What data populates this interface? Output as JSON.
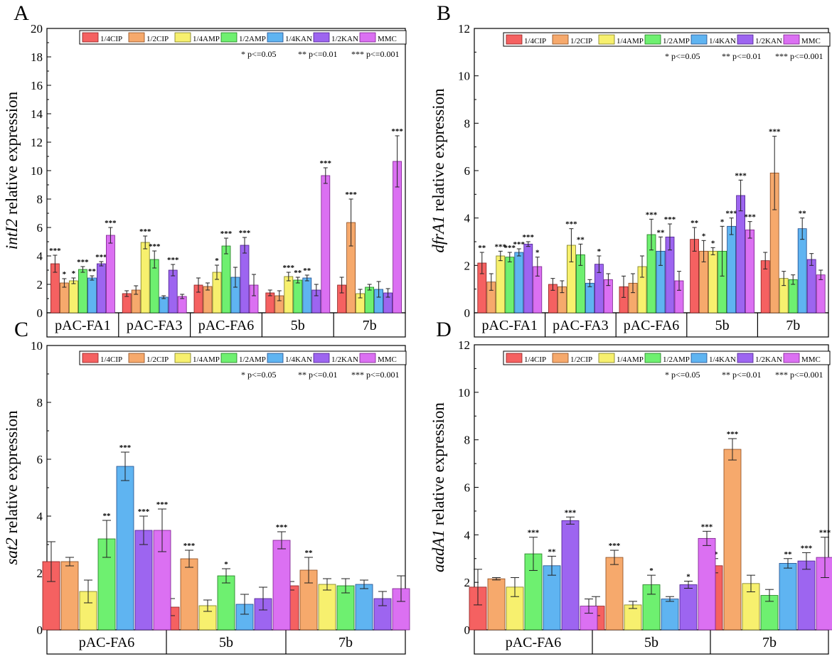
{
  "colors": {
    "fills": [
      "#f56161",
      "#f6a96c",
      "#f7f06e",
      "#6ef070",
      "#5fb4f1",
      "#9d65f0",
      "#db70f2"
    ],
    "strokes": [
      "#8b1e1e",
      "#8b4a1e",
      "#7a7a1e",
      "#1e7a1e",
      "#1e4a8b",
      "#4a1e8b",
      "#7a1e8b"
    ],
    "axis": "#000000"
  },
  "legend_labels": [
    "1/4CIP",
    "1/2CIP",
    "1/4AMP",
    "1/2AMP",
    "1/4KAN",
    "1/2KAN",
    "MMC"
  ],
  "significance_note": {
    "p05": "* p<=0.05",
    "p01": "** p<=0.01",
    "p001": "*** p<=0.001"
  },
  "chart_data": [
    {
      "panel": "A",
      "type": "bar",
      "ylabel_gene": "intI2",
      "ylabel_rest": " relative expression",
      "ylim": [
        0,
        20
      ],
      "yticks": [
        0,
        2,
        4,
        6,
        8,
        10,
        12,
        14,
        16,
        18,
        20
      ],
      "categories": [
        "pAC-FA1",
        "pAC-FA3",
        "pAC-FA6",
        "5b",
        "7b"
      ],
      "series": [
        {
          "name": "1/4CIP",
          "values": [
            3.45,
            1.35,
            1.95,
            1.4,
            1.95
          ],
          "errors": [
            0.6,
            0.2,
            0.5,
            0.2,
            0.55
          ],
          "sig": [
            "***",
            "",
            "",
            "",
            ""
          ]
        },
        {
          "name": "1/2CIP",
          "values": [
            2.1,
            1.6,
            1.85,
            1.2,
            6.35
          ],
          "errors": [
            0.3,
            0.3,
            0.25,
            0.35,
            1.65
          ],
          "sig": [
            "*",
            "",
            "",
            "",
            "***"
          ]
        },
        {
          "name": "1/4AMP",
          "values": [
            2.25,
            4.95,
            2.85,
            2.55,
            1.35
          ],
          "errors": [
            0.2,
            0.45,
            0.5,
            0.3,
            0.3
          ],
          "sig": [
            "*",
            "***",
            "*",
            "***",
            ""
          ]
        },
        {
          "name": "1/2AMP",
          "values": [
            3.05,
            3.75,
            4.7,
            2.3,
            1.8
          ],
          "errors": [
            0.2,
            0.6,
            0.55,
            0.2,
            0.2
          ],
          "sig": [
            "***",
            "***",
            "***",
            "**",
            ""
          ]
        },
        {
          "name": "1/4KAN",
          "values": [
            2.45,
            1.1,
            2.5,
            2.45,
            1.65
          ],
          "errors": [
            0.15,
            0.1,
            0.7,
            0.2,
            0.55
          ],
          "sig": [
            "**",
            "",
            "",
            "**",
            ""
          ]
        },
        {
          "name": "1/2KAN",
          "values": [
            3.45,
            3.0,
            4.75,
            1.6,
            1.4
          ],
          "errors": [
            0.15,
            0.4,
            0.55,
            0.4,
            0.3
          ],
          "sig": [
            "***",
            "***",
            "***",
            "",
            ""
          ]
        },
        {
          "name": "MMC",
          "values": [
            5.45,
            1.15,
            1.95,
            9.65,
            10.65
          ],
          "errors": [
            0.55,
            0.15,
            0.75,
            0.55,
            1.8
          ],
          "sig": [
            "***",
            "",
            "",
            "***",
            "***"
          ]
        }
      ]
    },
    {
      "panel": "B",
      "type": "bar",
      "ylabel_gene": "dfrA1",
      "ylabel_rest": " relative expression",
      "ylim": [
        0,
        12
      ],
      "yticks": [
        0,
        2,
        4,
        6,
        8,
        10,
        12
      ],
      "categories": [
        "pAC-FA1",
        "pAC-FA3",
        "pAC-FA6",
        "5b",
        "7b"
      ],
      "series": [
        {
          "name": "1/4CIP",
          "values": [
            2.1,
            1.2,
            1.1,
            3.1,
            2.2
          ],
          "errors": [
            0.45,
            0.25,
            0.45,
            0.5,
            0.35
          ],
          "sig": [
            "**",
            "",
            "",
            "**",
            ""
          ]
        },
        {
          "name": "1/2CIP",
          "values": [
            1.3,
            1.1,
            1.25,
            2.6,
            5.9
          ],
          "errors": [
            0.35,
            0.25,
            0.4,
            0.45,
            1.55
          ],
          "sig": [
            "",
            "",
            "",
            "*",
            "***"
          ]
        },
        {
          "name": "1/4AMP",
          "values": [
            2.4,
            2.85,
            1.95,
            2.6,
            1.45
          ],
          "errors": [
            0.2,
            0.7,
            0.45,
            0.15,
            0.3
          ],
          "sig": [
            "***",
            "***",
            "",
            "*",
            ""
          ]
        },
        {
          "name": "1/2AMP",
          "values": [
            2.35,
            2.45,
            3.3,
            2.6,
            1.4
          ],
          "errors": [
            0.2,
            0.45,
            0.65,
            1.05,
            0.2
          ],
          "sig": [
            "***",
            "**",
            "***",
            "*",
            ""
          ]
        },
        {
          "name": "1/4KAN",
          "values": [
            2.55,
            1.25,
            2.6,
            3.65,
            3.55
          ],
          "errors": [
            0.15,
            0.15,
            0.6,
            0.35,
            0.45
          ],
          "sig": [
            "***",
            "",
            "**",
            "***",
            "**"
          ]
        },
        {
          "name": "1/2KAN",
          "values": [
            2.9,
            2.05,
            3.2,
            4.95,
            2.25
          ],
          "errors": [
            0.1,
            0.35,
            0.55,
            0.65,
            0.25
          ],
          "sig": [
            "***",
            "*",
            "***",
            "***",
            ""
          ]
        },
        {
          "name": "MMC",
          "values": [
            1.95,
            1.4,
            1.35,
            3.5,
            1.6
          ],
          "errors": [
            0.4,
            0.25,
            0.4,
            0.35,
            0.2
          ],
          "sig": [
            "*",
            "",
            "",
            "***",
            ""
          ]
        }
      ]
    },
    {
      "panel": "C",
      "type": "bar",
      "ylabel_gene": "sat2",
      "ylabel_rest": " relative expression",
      "ylim": [
        0,
        10
      ],
      "yticks": [
        0,
        2,
        4,
        6,
        8,
        10
      ],
      "categories": [
        "pAC-FA6",
        "5b",
        "7b"
      ],
      "series": [
        {
          "name": "1/4CIP",
          "values": [
            2.4,
            0.8,
            1.55
          ],
          "errors": [
            0.7,
            0.3,
            0.15
          ],
          "sig": [
            "",
            "",
            ""
          ]
        },
        {
          "name": "1/2CIP",
          "values": [
            2.4,
            2.5,
            2.1
          ],
          "errors": [
            0.15,
            0.3,
            0.45
          ],
          "sig": [
            "",
            "***",
            "**"
          ]
        },
        {
          "name": "1/4AMP",
          "values": [
            1.35,
            0.85,
            1.6
          ],
          "errors": [
            0.4,
            0.2,
            0.2
          ],
          "sig": [
            "",
            "",
            ""
          ]
        },
        {
          "name": "1/2AMP",
          "values": [
            3.2,
            1.9,
            1.55
          ],
          "errors": [
            0.65,
            0.25,
            0.25
          ],
          "sig": [
            "**",
            "*",
            ""
          ]
        },
        {
          "name": "1/4KAN",
          "values": [
            5.75,
            0.9,
            1.6
          ],
          "errors": [
            0.5,
            0.35,
            0.15
          ],
          "sig": [
            "***",
            "",
            ""
          ]
        },
        {
          "name": "1/2KAN",
          "values": [
            3.5,
            1.1,
            1.1
          ],
          "errors": [
            0.5,
            0.4,
            0.25
          ],
          "sig": [
            "***",
            "",
            ""
          ]
        },
        {
          "name": "MMC",
          "values": [
            3.5,
            3.15,
            1.45
          ],
          "errors": [
            0.75,
            0.3,
            0.45
          ],
          "sig": [
            "***",
            "***",
            ""
          ]
        }
      ]
    },
    {
      "panel": "D",
      "type": "bar",
      "ylabel_gene": "aadA1",
      "ylabel_rest": " relative expression",
      "ylim": [
        0,
        12
      ],
      "yticks": [
        0,
        2,
        4,
        6,
        8,
        10,
        12
      ],
      "categories": [
        "pAC-FA6",
        "5b",
        "7b"
      ],
      "series": [
        {
          "name": "1/4CIP",
          "values": [
            1.8,
            1.0,
            2.7
          ],
          "errors": [
            0.75,
            0.4,
            0.3
          ],
          "sig": [
            "",
            "",
            "**"
          ]
        },
        {
          "name": "1/2CIP",
          "values": [
            2.15,
            3.05,
            7.6
          ],
          "errors": [
            0.05,
            0.3,
            0.45
          ],
          "sig": [
            "",
            "***",
            "***"
          ]
        },
        {
          "name": "1/4AMP",
          "values": [
            1.8,
            1.05,
            1.95
          ],
          "errors": [
            0.4,
            0.15,
            0.35
          ],
          "sig": [
            "",
            "",
            ""
          ]
        },
        {
          "name": "1/2AMP",
          "values": [
            3.2,
            1.9,
            1.45
          ],
          "errors": [
            0.7,
            0.4,
            0.25
          ],
          "sig": [
            "***",
            "*",
            ""
          ]
        },
        {
          "name": "1/4KAN",
          "values": [
            2.7,
            1.3,
            2.8
          ],
          "errors": [
            0.4,
            0.1,
            0.2
          ],
          "sig": [
            "**",
            "",
            "**"
          ]
        },
        {
          "name": "1/2KAN",
          "values": [
            4.6,
            1.9,
            2.9
          ],
          "errors": [
            0.15,
            0.15,
            0.35
          ],
          "sig": [
            "***",
            "*",
            "***"
          ]
        },
        {
          "name": "MMC",
          "values": [
            1.0,
            3.85,
            3.05
          ],
          "errors": [
            0.3,
            0.3,
            0.85
          ],
          "sig": [
            "",
            "***",
            "***"
          ]
        }
      ]
    }
  ]
}
